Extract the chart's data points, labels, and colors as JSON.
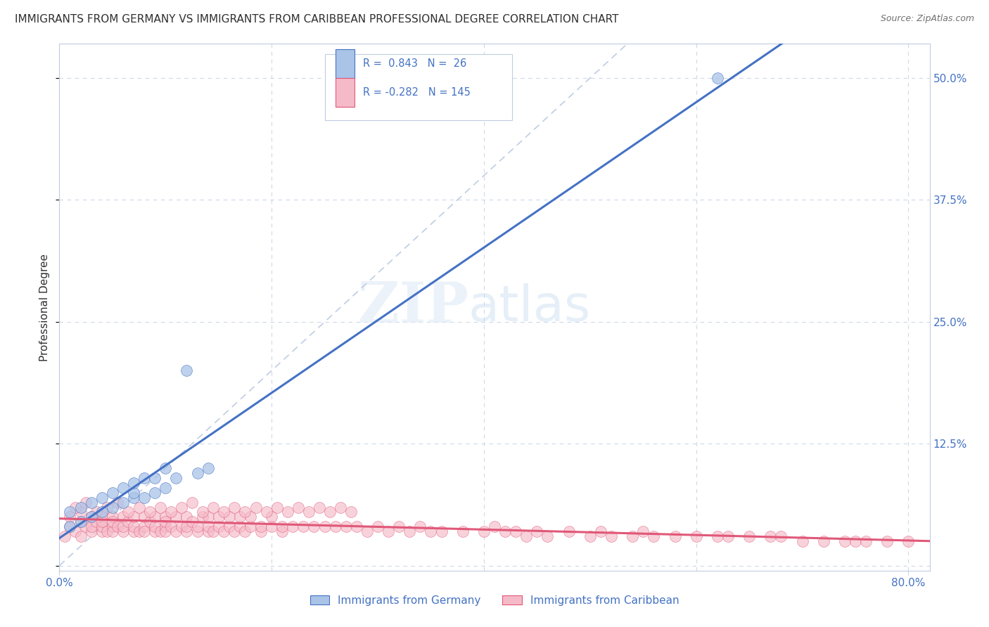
{
  "title": "IMMIGRANTS FROM GERMANY VS IMMIGRANTS FROM CARIBBEAN PROFESSIONAL DEGREE CORRELATION CHART",
  "source": "Source: ZipAtlas.com",
  "ylabel": "Professional Degree",
  "xlim": [
    0.0,
    0.82
  ],
  "ylim": [
    -0.005,
    0.535
  ],
  "r_germany": 0.843,
  "n_germany": 26,
  "r_caribbean": -0.282,
  "n_caribbean": 145,
  "color_germany": "#aac4e8",
  "color_caribbean": "#f5bac8",
  "line_germany": "#4472c4",
  "line_caribbean": "#e05878",
  "ref_line_color": "#b8c8e0",
  "background_color": "#ffffff",
  "title_color": "#303030",
  "axis_label_color": "#4472c4",
  "grid_color": "#c8d4e8",
  "germany_x": [
    0.01,
    0.01,
    0.02,
    0.02,
    0.03,
    0.03,
    0.04,
    0.04,
    0.05,
    0.05,
    0.06,
    0.06,
    0.07,
    0.07,
    0.07,
    0.08,
    0.08,
    0.09,
    0.09,
    0.1,
    0.1,
    0.11,
    0.12,
    0.13,
    0.14,
    0.62
  ],
  "germany_y": [
    0.04,
    0.055,
    0.045,
    0.06,
    0.05,
    0.065,
    0.055,
    0.07,
    0.06,
    0.075,
    0.065,
    0.08,
    0.07,
    0.075,
    0.085,
    0.07,
    0.09,
    0.075,
    0.09,
    0.08,
    0.1,
    0.09,
    0.2,
    0.095,
    0.1,
    0.5
  ],
  "caribbean_x": [
    0.005,
    0.01,
    0.01,
    0.015,
    0.02,
    0.02,
    0.02,
    0.025,
    0.03,
    0.03,
    0.03,
    0.035,
    0.04,
    0.04,
    0.04,
    0.04,
    0.045,
    0.05,
    0.05,
    0.05,
    0.05,
    0.055,
    0.06,
    0.06,
    0.06,
    0.065,
    0.07,
    0.07,
    0.07,
    0.075,
    0.08,
    0.08,
    0.08,
    0.085,
    0.09,
    0.09,
    0.09,
    0.095,
    0.1,
    0.1,
    0.1,
    0.1,
    0.105,
    0.11,
    0.11,
    0.115,
    0.12,
    0.12,
    0.12,
    0.125,
    0.13,
    0.13,
    0.135,
    0.14,
    0.14,
    0.14,
    0.145,
    0.15,
    0.15,
    0.155,
    0.16,
    0.16,
    0.165,
    0.17,
    0.17,
    0.175,
    0.18,
    0.18,
    0.19,
    0.19,
    0.2,
    0.2,
    0.21,
    0.21,
    0.22,
    0.23,
    0.24,
    0.25,
    0.26,
    0.27,
    0.28,
    0.29,
    0.3,
    0.31,
    0.32,
    0.33,
    0.34,
    0.35,
    0.36,
    0.38,
    0.4,
    0.41,
    0.42,
    0.43,
    0.44,
    0.45,
    0.46,
    0.48,
    0.5,
    0.51,
    0.52,
    0.54,
    0.55,
    0.56,
    0.58,
    0.6,
    0.62,
    0.63,
    0.65,
    0.67,
    0.68,
    0.7,
    0.72,
    0.74,
    0.75,
    0.76,
    0.78,
    0.8,
    0.015,
    0.025,
    0.035,
    0.045,
    0.055,
    0.065,
    0.075,
    0.085,
    0.095,
    0.105,
    0.115,
    0.125,
    0.135,
    0.145,
    0.155,
    0.165,
    0.175,
    0.185,
    0.195,
    0.205,
    0.215,
    0.225,
    0.235,
    0.245,
    0.255,
    0.265,
    0.275
  ],
  "caribbean_y": [
    0.03,
    0.04,
    0.05,
    0.035,
    0.045,
    0.055,
    0.03,
    0.04,
    0.035,
    0.05,
    0.04,
    0.045,
    0.035,
    0.05,
    0.04,
    0.045,
    0.035,
    0.04,
    0.05,
    0.035,
    0.045,
    0.04,
    0.035,
    0.05,
    0.04,
    0.045,
    0.035,
    0.04,
    0.05,
    0.035,
    0.04,
    0.05,
    0.035,
    0.045,
    0.035,
    0.04,
    0.05,
    0.035,
    0.04,
    0.05,
    0.035,
    0.045,
    0.04,
    0.035,
    0.05,
    0.04,
    0.035,
    0.05,
    0.04,
    0.045,
    0.035,
    0.04,
    0.05,
    0.035,
    0.04,
    0.05,
    0.035,
    0.04,
    0.05,
    0.035,
    0.04,
    0.05,
    0.035,
    0.04,
    0.05,
    0.035,
    0.04,
    0.05,
    0.035,
    0.04,
    0.04,
    0.05,
    0.035,
    0.04,
    0.04,
    0.04,
    0.04,
    0.04,
    0.04,
    0.04,
    0.04,
    0.035,
    0.04,
    0.035,
    0.04,
    0.035,
    0.04,
    0.035,
    0.035,
    0.035,
    0.035,
    0.04,
    0.035,
    0.035,
    0.03,
    0.035,
    0.03,
    0.035,
    0.03,
    0.035,
    0.03,
    0.03,
    0.035,
    0.03,
    0.03,
    0.03,
    0.03,
    0.03,
    0.03,
    0.03,
    0.03,
    0.025,
    0.025,
    0.025,
    0.025,
    0.025,
    0.025,
    0.025,
    0.06,
    0.065,
    0.055,
    0.06,
    0.065,
    0.055,
    0.06,
    0.055,
    0.06,
    0.055,
    0.06,
    0.065,
    0.055,
    0.06,
    0.055,
    0.06,
    0.055,
    0.06,
    0.055,
    0.06,
    0.055,
    0.06,
    0.055,
    0.06,
    0.055,
    0.06,
    0.055
  ]
}
